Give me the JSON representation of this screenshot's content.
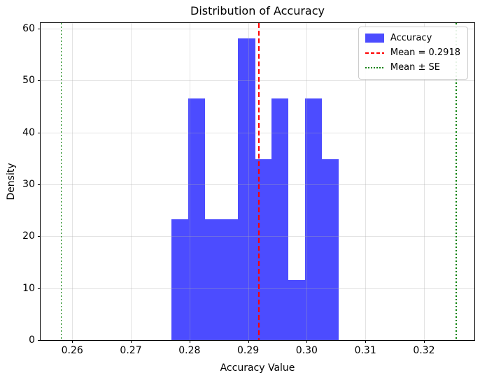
{
  "chart_data": {
    "type": "histogram",
    "title": "Distribution of Accuracy",
    "xlabel": "Accuracy Value",
    "ylabel": "Density",
    "bin_edges": [
      0.2769,
      0.2798,
      0.2826,
      0.2855,
      0.2883,
      0.2912,
      0.294,
      0.2969,
      0.2997,
      0.3026,
      0.3054
    ],
    "densities": [
      23.26,
      46.51,
      23.26,
      23.26,
      58.14,
      34.88,
      46.51,
      11.63,
      46.51,
      34.88
    ],
    "mean_line": {
      "value": 0.2918,
      "label": "Mean = 0.2918"
    },
    "se_lines": {
      "lower": 0.2581,
      "upper": 0.3255,
      "label": "Mean ± SE"
    },
    "xlim": [
      0.2546,
      0.3286
    ],
    "ylim": [
      0,
      61.1
    ],
    "x_ticks": [
      {
        "value": 0.26,
        "label": "0.26"
      },
      {
        "value": 0.27,
        "label": "0.27"
      },
      {
        "value": 0.28,
        "label": "0.28"
      },
      {
        "value": 0.29,
        "label": "0.29"
      },
      {
        "value": 0.3,
        "label": "0.30"
      },
      {
        "value": 0.31,
        "label": "0.31"
      },
      {
        "value": 0.32,
        "label": "0.32"
      }
    ],
    "y_ticks": [
      {
        "value": 0,
        "label": "0"
      },
      {
        "value": 10,
        "label": "10"
      },
      {
        "value": 20,
        "label": "20"
      },
      {
        "value": 30,
        "label": "30"
      },
      {
        "value": 40,
        "label": "40"
      },
      {
        "value": 50,
        "label": "50"
      },
      {
        "value": 60,
        "label": "60"
      }
    ],
    "grid": true,
    "legend": {
      "position": "upper right",
      "items": [
        {
          "label": "Accuracy",
          "marker": "patch",
          "color": "#4c4cff"
        },
        {
          "label": "Mean = 0.2918",
          "marker": "dashed-line",
          "color": "#ff0000"
        },
        {
          "label": "Mean ± SE",
          "marker": "dotted-line",
          "color": "#008000"
        }
      ]
    },
    "colors": {
      "bar": "#4c4cff",
      "mean": "#ff0000",
      "se": "#008000",
      "grid": "#b0b0b0",
      "spine": "#000000"
    }
  }
}
